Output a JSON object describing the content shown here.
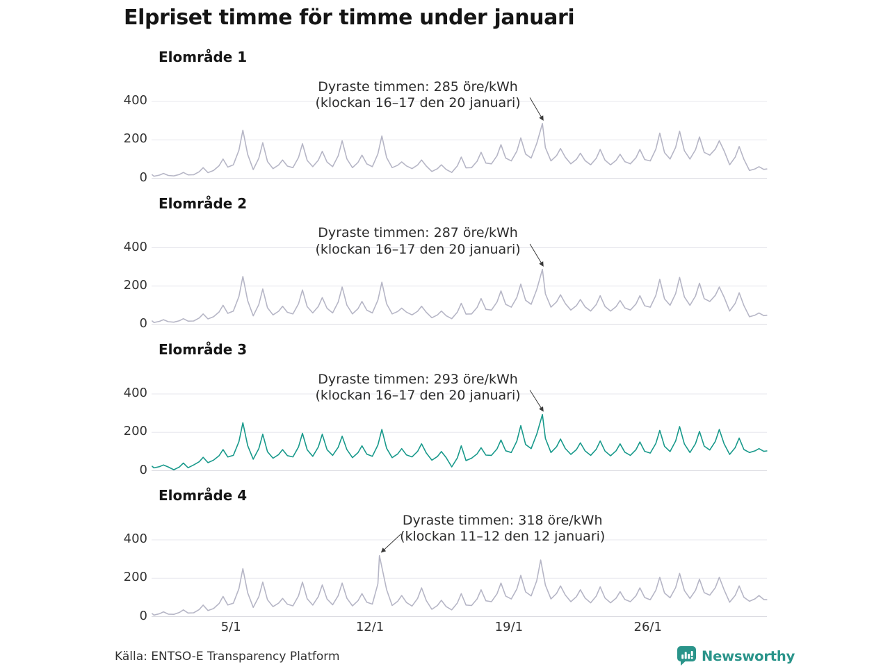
{
  "title": "Elpriset timme för timme under januari",
  "source": "Källa: ENTSO-E Transparency Platform",
  "branding": {
    "name": "Newsworthy",
    "color": "#2a948a",
    "icon": "newsworthy-speech-bubble-bar-chart-icon"
  },
  "colors": {
    "line_default": "#b6b6c6",
    "line_highlight": "#18998b",
    "grid": "#e7e7ed",
    "baseline": "#d9d9e0",
    "tick_text": "#333333",
    "annotation_text": "#2d2d2d",
    "arrow": "#3a3a3a",
    "title_text": "#151515"
  },
  "axis": {
    "unit": "öre/kWh",
    "x_domain": "1–31 januari, timvärden",
    "x_ticks": [
      {
        "label": "5/1",
        "day": 5
      },
      {
        "label": "12/1",
        "day": 12
      },
      {
        "label": "19/1",
        "day": 19
      },
      {
        "label": "26/1",
        "day": 26
      }
    ],
    "y_ticks": [
      {
        "label": "0",
        "value": 0
      },
      {
        "label": "200",
        "value": 200
      },
      {
        "label": "400",
        "value": 400
      }
    ],
    "y_max": 400
  },
  "chart_data": [
    {
      "type": "line",
      "label": "Elområde 1",
      "highlight": false,
      "annotation": {
        "line1": "Dyraste timmen: 285 öre/kWh",
        "line2": "(klockan 16–17 den 20 januari)",
        "value": 285,
        "day": 20,
        "hour": 16.5
      },
      "daily_peaks": [
        25,
        30,
        55,
        100,
        250,
        185,
        95,
        180,
        140,
        195,
        120,
        220,
        85,
        95,
        70,
        110,
        135,
        175,
        210,
        285,
        155,
        130,
        150,
        125,
        150,
        235,
        245,
        215,
        195,
        165,
        60
      ],
      "daily_troughs": [
        10,
        12,
        18,
        40,
        70,
        45,
        50,
        55,
        60,
        60,
        55,
        60,
        55,
        50,
        35,
        30,
        55,
        75,
        90,
        105,
        90,
        75,
        70,
        70,
        75,
        90,
        100,
        100,
        120,
        70,
        40
      ]
    },
    {
      "type": "line",
      "label": "Elområde 2",
      "highlight": false,
      "annotation": {
        "line1": "Dyraste timmen: 287 öre/kWh",
        "line2": "(klockan 16–17 den 20 januari)",
        "value": 287,
        "day": 20,
        "hour": 16.5
      },
      "daily_peaks": [
        25,
        30,
        55,
        100,
        250,
        185,
        95,
        180,
        140,
        195,
        120,
        220,
        85,
        95,
        70,
        110,
        135,
        175,
        210,
        287,
        155,
        130,
        150,
        125,
        150,
        235,
        245,
        215,
        195,
        165,
        60
      ],
      "daily_troughs": [
        10,
        12,
        18,
        40,
        70,
        45,
        50,
        55,
        60,
        60,
        55,
        60,
        55,
        50,
        35,
        30,
        55,
        75,
        90,
        105,
        90,
        75,
        70,
        70,
        75,
        90,
        100,
        100,
        120,
        70,
        40
      ]
    },
    {
      "type": "line",
      "label": "Elområde 3",
      "highlight": true,
      "annotation": {
        "line1": "Dyraste timmen: 293 öre/kWh",
        "line2": "(klockan 16–17 den 20 januari)",
        "value": 293,
        "day": 20,
        "hour": 16.5
      },
      "daily_peaks": [
        30,
        40,
        70,
        110,
        250,
        190,
        110,
        195,
        190,
        180,
        130,
        215,
        115,
        140,
        100,
        130,
        120,
        160,
        235,
        293,
        165,
        145,
        155,
        140,
        150,
        210,
        230,
        205,
        215,
        170,
        115
      ],
      "daily_troughs": [
        15,
        5,
        30,
        55,
        80,
        60,
        65,
        72,
        75,
        80,
        68,
        75,
        68,
        72,
        55,
        20,
        65,
        80,
        95,
        115,
        95,
        85,
        80,
        78,
        80,
        92,
        100,
        95,
        108,
        85,
        95
      ]
    },
    {
      "type": "line",
      "label": "Elområde 4",
      "highlight": false,
      "annotation": {
        "line1": "Dyraste timmen: 318 öre/kWh",
        "line2": "(klockan 11–12 den 12 januari)",
        "value": 318,
        "day": 12,
        "hour": 11.5
      },
      "daily_peaks": [
        25,
        35,
        60,
        105,
        250,
        180,
        95,
        180,
        165,
        175,
        120,
        318,
        110,
        150,
        85,
        120,
        140,
        175,
        215,
        295,
        160,
        140,
        155,
        130,
        150,
        205,
        225,
        195,
        205,
        160,
        110
      ],
      "daily_troughs": [
        8,
        12,
        20,
        42,
        70,
        48,
        52,
        56,
        60,
        62,
        56,
        65,
        58,
        55,
        38,
        35,
        58,
        78,
        92,
        108,
        92,
        78,
        72,
        72,
        78,
        88,
        98,
        95,
        112,
        75,
        80
      ]
    }
  ]
}
